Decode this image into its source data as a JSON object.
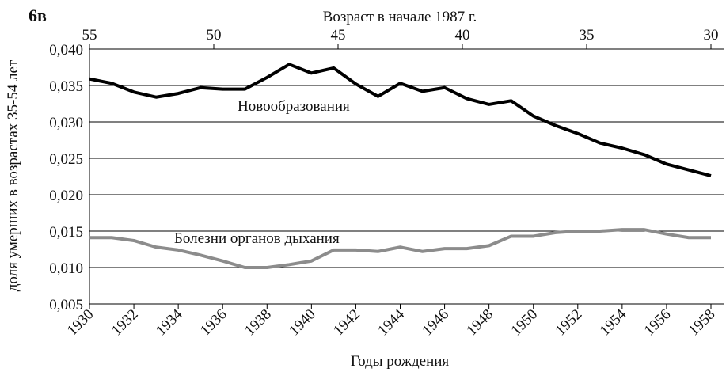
{
  "chart_data": {
    "type": "line",
    "panel_label": "6в",
    "x2_label": "Возраст в начале 1987 г.",
    "xlabel": "Годы рождения",
    "ylabel": "доля умерших в возрастах 35-54 лет",
    "x": [
      1930,
      1931,
      1932,
      1933,
      1934,
      1935,
      1936,
      1937,
      1938,
      1939,
      1940,
      1941,
      1942,
      1943,
      1944,
      1945,
      1946,
      1947,
      1948,
      1949,
      1950,
      1951,
      1952,
      1953,
      1954,
      1955,
      1956,
      1957,
      1958
    ],
    "series": [
      {
        "name": "Новообразования",
        "color": "#000000",
        "values": [
          0.0359,
          0.0353,
          0.0341,
          0.0334,
          0.0339,
          0.0347,
          0.0345,
          0.0345,
          0.0361,
          0.0379,
          0.0367,
          0.0374,
          0.0352,
          0.0335,
          0.0353,
          0.0342,
          0.0347,
          0.0332,
          0.0324,
          0.0329,
          0.0308,
          0.0295,
          0.0284,
          0.0271,
          0.0264,
          0.0255,
          0.0242,
          0.0234,
          0.0226
        ]
      },
      {
        "name": "Болезни органов дыхания",
        "color": "#8c8c8c",
        "values": [
          0.0141,
          0.0141,
          0.0137,
          0.0128,
          0.0124,
          0.0117,
          0.0109,
          0.01,
          0.01,
          0.0104,
          0.0109,
          0.0124,
          0.0124,
          0.0122,
          0.0128,
          0.0122,
          0.0126,
          0.0126,
          0.013,
          0.0143,
          0.0143,
          0.0148,
          0.015,
          0.015,
          0.0152,
          0.0152,
          0.0146,
          0.0141,
          0.0141
        ]
      }
    ],
    "xlim": [
      1930,
      1958
    ],
    "xticks": [
      1930,
      1932,
      1934,
      1936,
      1938,
      1940,
      1942,
      1944,
      1946,
      1948,
      1950,
      1952,
      1954,
      1956,
      1958
    ],
    "x2lim": [
      55,
      30
    ],
    "x2ticks": [
      55,
      50,
      45,
      40,
      35,
      30
    ],
    "ylim": [
      0.005,
      0.04
    ],
    "yticks": [
      {
        "value": 0.005,
        "label": "0,005"
      },
      {
        "value": 0.01,
        "label": "0,010"
      },
      {
        "value": 0.015,
        "label": "0,015"
      },
      {
        "value": 0.02,
        "label": "0,020"
      },
      {
        "value": 0.025,
        "label": "0,025"
      },
      {
        "value": 0.03,
        "label": "0,030"
      },
      {
        "value": 0.035,
        "label": "0,035"
      },
      {
        "value": 0.04,
        "label": "0,040"
      }
    ],
    "grid": true
  }
}
